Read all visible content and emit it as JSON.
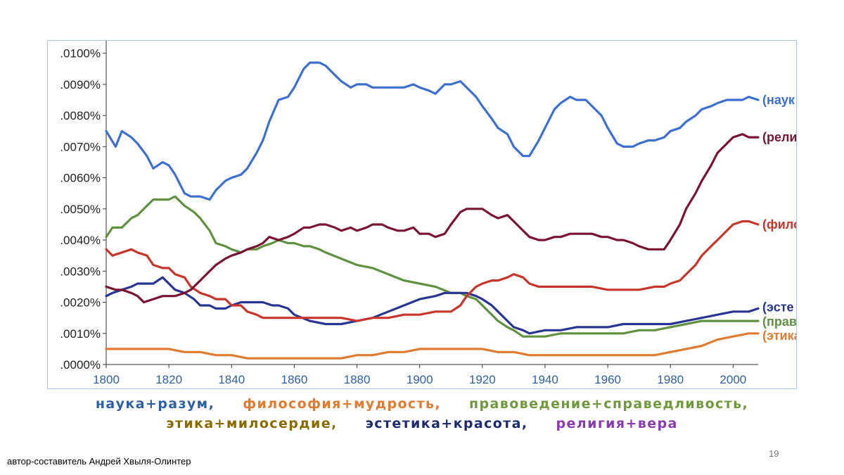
{
  "chart_data": {
    "type": "line",
    "xlim": [
      1800,
      2008
    ],
    "ylim": [
      0,
      0.0104
    ],
    "x_ticks": [
      "1800",
      "1820",
      "1840",
      "1860",
      "1880",
      "1900",
      "1920",
      "1940",
      "1960",
      "1980",
      "2000"
    ],
    "y_ticks": [
      ".0000%",
      ".0010%",
      ".0020%",
      ".0030%",
      ".0040%",
      ".0050%",
      ".0060%",
      ".0070%",
      ".0080%",
      ".0090%",
      ".0100%"
    ],
    "grid": false,
    "series": [
      {
        "name": "(наук",
        "color": "#3d6fd0",
        "x": [
          1800,
          1803,
          1805,
          1808,
          1810,
          1813,
          1815,
          1818,
          1820,
          1822,
          1825,
          1827,
          1830,
          1833,
          1835,
          1838,
          1840,
          1843,
          1845,
          1848,
          1850,
          1852,
          1855,
          1858,
          1860,
          1863,
          1865,
          1868,
          1870,
          1873,
          1875,
          1878,
          1880,
          1883,
          1885,
          1888,
          1890,
          1893,
          1895,
          1898,
          1900,
          1903,
          1905,
          1908,
          1910,
          1913,
          1915,
          1918,
          1920,
          1923,
          1925,
          1928,
          1930,
          1933,
          1935,
          1938,
          1940,
          1943,
          1945,
          1948,
          1950,
          1953,
          1955,
          1958,
          1960,
          1963,
          1965,
          1968,
          1970,
          1973,
          1975,
          1978,
          1980,
          1983,
          1985,
          1988,
          1990,
          1993,
          1995,
          1998,
          2000,
          2003,
          2005,
          2008
        ],
        "y": [
          0.0075,
          0.007,
          0.0075,
          0.0073,
          0.0071,
          0.0067,
          0.0063,
          0.0065,
          0.0064,
          0.0061,
          0.0055,
          0.0054,
          0.0054,
          0.0053,
          0.0056,
          0.0059,
          0.006,
          0.0061,
          0.0063,
          0.0068,
          0.0072,
          0.0078,
          0.0085,
          0.0086,
          0.0089,
          0.0095,
          0.0097,
          0.0097,
          0.0096,
          0.0093,
          0.0091,
          0.0089,
          0.009,
          0.009,
          0.0089,
          0.0089,
          0.0089,
          0.0089,
          0.0089,
          0.009,
          0.0089,
          0.0088,
          0.0087,
          0.009,
          0.009,
          0.0091,
          0.0089,
          0.0086,
          0.0083,
          0.0079,
          0.0076,
          0.0074,
          0.007,
          0.0067,
          0.0067,
          0.0072,
          0.0076,
          0.0082,
          0.0084,
          0.0086,
          0.0085,
          0.0085,
          0.0083,
          0.008,
          0.0076,
          0.0071,
          0.007,
          0.007,
          0.0071,
          0.0072,
          0.0072,
          0.0073,
          0.0075,
          0.0076,
          0.0078,
          0.008,
          0.0082,
          0.0083,
          0.0084,
          0.0085,
          0.0085,
          0.0085,
          0.0086,
          0.0085
        ]
      },
      {
        "name": "(рели",
        "color": "#7a1432",
        "x": [
          1800,
          1803,
          1805,
          1808,
          1810,
          1812,
          1815,
          1818,
          1820,
          1822,
          1825,
          1827,
          1830,
          1833,
          1835,
          1838,
          1840,
          1843,
          1845,
          1848,
          1850,
          1852,
          1855,
          1858,
          1860,
          1863,
          1865,
          1868,
          1870,
          1873,
          1875,
          1878,
          1880,
          1883,
          1885,
          1888,
          1890,
          1893,
          1895,
          1898,
          1900,
          1903,
          1905,
          1908,
          1910,
          1913,
          1915,
          1918,
          1920,
          1923,
          1925,
          1928,
          1930,
          1933,
          1935,
          1938,
          1940,
          1943,
          1945,
          1948,
          1950,
          1953,
          1955,
          1958,
          1960,
          1963,
          1965,
          1968,
          1970,
          1973,
          1975,
          1978,
          1980,
          1983,
          1985,
          1988,
          1990,
          1993,
          1995,
          1998,
          2000,
          2003,
          2005,
          2008
        ],
        "y": [
          0.0025,
          0.0024,
          0.0024,
          0.0023,
          0.0022,
          0.002,
          0.0021,
          0.0022,
          0.0022,
          0.0022,
          0.0023,
          0.0024,
          0.0027,
          0.003,
          0.0032,
          0.0034,
          0.0035,
          0.0036,
          0.0037,
          0.0038,
          0.0039,
          0.0041,
          0.004,
          0.0041,
          0.0042,
          0.0044,
          0.0044,
          0.0045,
          0.0045,
          0.0044,
          0.0043,
          0.0044,
          0.0043,
          0.0044,
          0.0045,
          0.0045,
          0.0044,
          0.0043,
          0.0043,
          0.0044,
          0.0042,
          0.0042,
          0.0041,
          0.0042,
          0.0045,
          0.0049,
          0.005,
          0.005,
          0.005,
          0.0048,
          0.0047,
          0.0048,
          0.0046,
          0.0043,
          0.0041,
          0.004,
          0.004,
          0.0041,
          0.0041,
          0.0042,
          0.0042,
          0.0042,
          0.0042,
          0.0041,
          0.0041,
          0.004,
          0.004,
          0.0039,
          0.0038,
          0.0037,
          0.0037,
          0.0037,
          0.004,
          0.0045,
          0.005,
          0.0055,
          0.0059,
          0.0064,
          0.0068,
          0.0071,
          0.0073,
          0.0074,
          0.0073,
          0.0073
        ]
      },
      {
        "name": "(фило",
        "color": "#c8352a",
        "x": [
          1800,
          1802,
          1805,
          1808,
          1810,
          1813,
          1815,
          1818,
          1820,
          1822,
          1825,
          1827,
          1830,
          1833,
          1835,
          1838,
          1840,
          1843,
          1845,
          1848,
          1850,
          1853,
          1855,
          1858,
          1860,
          1865,
          1870,
          1875,
          1880,
          1885,
          1890,
          1895,
          1900,
          1905,
          1910,
          1913,
          1915,
          1918,
          1920,
          1923,
          1925,
          1928,
          1930,
          1933,
          1935,
          1938,
          1940,
          1945,
          1950,
          1955,
          1960,
          1965,
          1970,
          1975,
          1978,
          1980,
          1983,
          1985,
          1988,
          1990,
          1993,
          1995,
          1998,
          2000,
          2003,
          2005,
          2008
        ],
        "y": [
          0.0037,
          0.0035,
          0.0036,
          0.0037,
          0.0036,
          0.0035,
          0.0032,
          0.0031,
          0.0031,
          0.0029,
          0.0028,
          0.0025,
          0.0023,
          0.0022,
          0.0021,
          0.0021,
          0.0019,
          0.0019,
          0.0017,
          0.0016,
          0.0015,
          0.0015,
          0.0015,
          0.0015,
          0.0015,
          0.0015,
          0.0015,
          0.0015,
          0.0014,
          0.0015,
          0.0015,
          0.0016,
          0.0016,
          0.0017,
          0.0017,
          0.0019,
          0.0022,
          0.0025,
          0.0026,
          0.0027,
          0.0027,
          0.0028,
          0.0029,
          0.0028,
          0.0026,
          0.0025,
          0.0025,
          0.0025,
          0.0025,
          0.0025,
          0.0024,
          0.0024,
          0.0024,
          0.0025,
          0.0025,
          0.0026,
          0.0027,
          0.0029,
          0.0032,
          0.0035,
          0.0038,
          0.004,
          0.0043,
          0.0045,
          0.0046,
          0.0046,
          0.0045
        ]
      },
      {
        "name": "(эсте",
        "color": "#283593",
        "x": [
          1800,
          1802,
          1805,
          1808,
          1810,
          1813,
          1815,
          1818,
          1820,
          1822,
          1825,
          1828,
          1830,
          1833,
          1835,
          1838,
          1840,
          1843,
          1845,
          1848,
          1850,
          1853,
          1855,
          1858,
          1860,
          1865,
          1870,
          1875,
          1880,
          1885,
          1890,
          1895,
          1900,
          1905,
          1908,
          1910,
          1913,
          1915,
          1918,
          1920,
          1923,
          1925,
          1928,
          1930,
          1933,
          1935,
          1940,
          1945,
          1950,
          1955,
          1960,
          1965,
          1970,
          1975,
          1980,
          1985,
          1990,
          1995,
          2000,
          2005,
          2008
        ],
        "y": [
          0.0022,
          0.0023,
          0.0024,
          0.0025,
          0.0026,
          0.0026,
          0.0026,
          0.0028,
          0.0026,
          0.0024,
          0.0023,
          0.0021,
          0.0019,
          0.0019,
          0.0018,
          0.0018,
          0.0019,
          0.002,
          0.002,
          0.002,
          0.002,
          0.0019,
          0.0019,
          0.0018,
          0.0016,
          0.0014,
          0.0013,
          0.0013,
          0.0014,
          0.0015,
          0.0017,
          0.0019,
          0.0021,
          0.0022,
          0.0023,
          0.0023,
          0.0023,
          0.0023,
          0.0022,
          0.0021,
          0.0019,
          0.0017,
          0.0014,
          0.0012,
          0.0011,
          0.001,
          0.0011,
          0.0011,
          0.0012,
          0.0012,
          0.0012,
          0.0013,
          0.0013,
          0.0013,
          0.0013,
          0.0014,
          0.0015,
          0.0016,
          0.0017,
          0.0017,
          0.0018
        ]
      },
      {
        "name": "(прав",
        "color": "#5f9140",
        "x": [
          1800,
          1802,
          1805,
          1808,
          1810,
          1812,
          1815,
          1818,
          1820,
          1822,
          1825,
          1828,
          1830,
          1833,
          1835,
          1838,
          1840,
          1843,
          1845,
          1848,
          1850,
          1853,
          1855,
          1858,
          1860,
          1863,
          1865,
          1868,
          1870,
          1875,
          1880,
          1885,
          1890,
          1895,
          1900,
          1905,
          1910,
          1913,
          1915,
          1918,
          1920,
          1923,
          1925,
          1928,
          1930,
          1933,
          1935,
          1940,
          1945,
          1950,
          1955,
          1960,
          1965,
          1970,
          1975,
          1980,
          1985,
          1990,
          1995,
          2000,
          2005,
          2008
        ],
        "y": [
          0.0041,
          0.0044,
          0.0044,
          0.0047,
          0.0048,
          0.005,
          0.0053,
          0.0053,
          0.0053,
          0.0054,
          0.0051,
          0.0049,
          0.0047,
          0.0043,
          0.0039,
          0.0038,
          0.0037,
          0.0036,
          0.0037,
          0.0037,
          0.0038,
          0.0039,
          0.004,
          0.0039,
          0.0039,
          0.0038,
          0.0038,
          0.0037,
          0.0036,
          0.0034,
          0.0032,
          0.0031,
          0.0029,
          0.0027,
          0.0026,
          0.0025,
          0.0023,
          0.0023,
          0.0022,
          0.0021,
          0.0019,
          0.0016,
          0.0014,
          0.0012,
          0.0011,
          0.0009,
          0.0009,
          0.0009,
          0.001,
          0.001,
          0.001,
          0.001,
          0.001,
          0.0011,
          0.0011,
          0.0012,
          0.0013,
          0.0014,
          0.0014,
          0.0014,
          0.0014,
          0.0014
        ]
      },
      {
        "name": "(этика",
        "color": "#e07b2f",
        "x": [
          1800,
          1805,
          1810,
          1815,
          1820,
          1825,
          1830,
          1835,
          1840,
          1845,
          1850,
          1855,
          1860,
          1865,
          1870,
          1875,
          1880,
          1885,
          1890,
          1895,
          1900,
          1905,
          1910,
          1915,
          1920,
          1925,
          1930,
          1935,
          1940,
          1945,
          1950,
          1955,
          1960,
          1965,
          1970,
          1975,
          1980,
          1985,
          1990,
          1995,
          2000,
          2005,
          2008
        ],
        "y": [
          0.0005,
          0.0005,
          0.0005,
          0.0005,
          0.0005,
          0.0004,
          0.0004,
          0.0003,
          0.0003,
          0.0002,
          0.0002,
          0.0002,
          0.0002,
          0.0002,
          0.0002,
          0.0002,
          0.0003,
          0.0003,
          0.0004,
          0.0004,
          0.0005,
          0.0005,
          0.0005,
          0.0005,
          0.0005,
          0.0004,
          0.0004,
          0.0003,
          0.0003,
          0.0003,
          0.0003,
          0.0003,
          0.0003,
          0.0003,
          0.0003,
          0.0003,
          0.0004,
          0.0005,
          0.0006,
          0.0008,
          0.0009,
          0.001,
          0.001
        ]
      }
    ]
  },
  "legend": {
    "line1": [
      {
        "label": "наука+разум,",
        "color": "#2e5fa5"
      },
      {
        "label": "философия+мудрость,",
        "color": "#e07b2f"
      },
      {
        "label": "правоведение+справедливость,",
        "color": "#6e9a3c"
      }
    ],
    "line2": [
      {
        "label": "этика+милосердие,",
        "color": "#8b6a00"
      },
      {
        "label": "эстетика+красота,",
        "color": "#1d2b6e"
      },
      {
        "label": "религия+вера",
        "color": "#8a3bb3"
      }
    ]
  },
  "footer": {
    "author": "автор-составитель Андрей Хвыля-Олинтер",
    "slide_number": "19"
  }
}
